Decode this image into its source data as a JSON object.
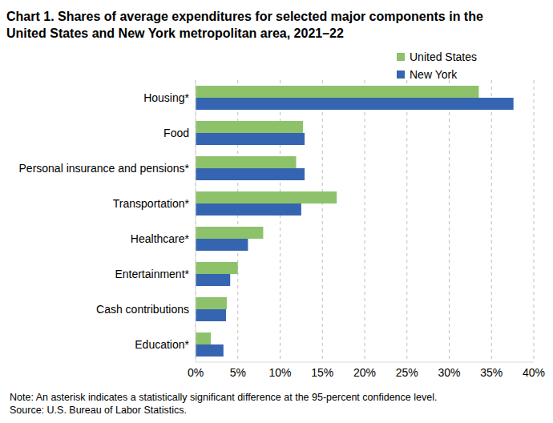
{
  "chart_data": {
    "type": "bar",
    "orientation": "horizontal",
    "title": "Chart 1. Shares of average expenditures for selected major components in the United States and New York metropolitan area, 2021–22",
    "notes": [
      "Note: An asterisk indicates a statistically significant difference at the 95-percent confidence level.",
      "Source: U.S. Bureau of Labor Statistics."
    ],
    "categories": [
      "Housing*",
      "Food",
      "Personal insurance and pensions*",
      "Transportation*",
      "Healthcare*",
      "Entertainment*",
      "Cash contributions",
      "Education*"
    ],
    "series": [
      {
        "name": "United States",
        "color": "#8dc26b",
        "values": [
          33.5,
          12.7,
          11.9,
          16.7,
          8.0,
          5.0,
          3.7,
          1.8
        ]
      },
      {
        "name": "New York",
        "color": "#3565b0",
        "values": [
          37.6,
          12.9,
          12.9,
          12.5,
          6.2,
          4.1,
          3.6,
          3.3
        ]
      }
    ],
    "xlim": [
      0,
      40
    ],
    "xticks": [
      {
        "value": 0,
        "label": "0%"
      },
      {
        "value": 5,
        "label": "5%"
      },
      {
        "value": 10,
        "label": "10%"
      },
      {
        "value": 15,
        "label": "15%"
      },
      {
        "value": 20,
        "label": "20%"
      },
      {
        "value": 25,
        "label": "25%"
      },
      {
        "value": 30,
        "label": "30%"
      },
      {
        "value": 35,
        "label": "35%"
      },
      {
        "value": 40,
        "label": "40%"
      }
    ],
    "grid": true,
    "legend": "top right"
  }
}
